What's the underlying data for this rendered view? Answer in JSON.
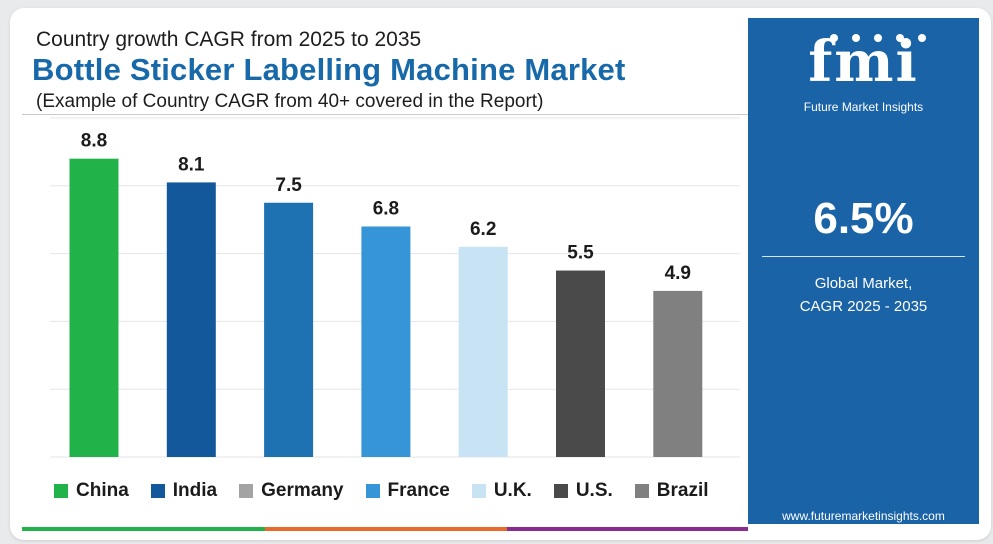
{
  "header": {
    "subtitle": "Country growth CAGR from 2025 to 2035",
    "title": "Bottle Sticker Labelling Machine Market",
    "note": "(Example of Country CAGR from 40+ covered in the Report)"
  },
  "chart_data": {
    "type": "bar",
    "title": "Bottle Sticker Labelling Machine Market",
    "subtitle": "Country growth CAGR from 2025 to 2035",
    "categories": [
      "China",
      "India",
      "Germany",
      "France",
      "U.K.",
      "U.S.",
      "Brazil"
    ],
    "values": [
      8.8,
      8.1,
      7.5,
      6.8,
      6.2,
      5.5,
      4.9
    ],
    "bar_colors": [
      "#21b24a",
      "#13589a",
      "#1e72b2",
      "#3595d7",
      "#c7e3f4",
      "#4a4a4a",
      "#808080"
    ],
    "ylim": [
      0,
      10
    ],
    "grid": true,
    "legend": "bottom",
    "legend_colors": [
      "#21b24a",
      "#13589a",
      "#a3a3a3",
      "#3595d7",
      "#c7e3f4",
      "#4a4a4a",
      "#808080"
    ]
  },
  "sidebar": {
    "logo": "fmi",
    "logo_tagline": "Future Market Insights",
    "kpi_value": "6.5%",
    "kpi_label_line1": "Global Market,",
    "kpi_label_line2": "CAGR 2025 - 2035",
    "website": "www.futuremarketinsights.com"
  },
  "colors": {
    "title": "#1769aa",
    "panel": "#1a63a7",
    "stripes": [
      "#21b24a",
      "#ea6a2c",
      "#8a2d91"
    ]
  }
}
